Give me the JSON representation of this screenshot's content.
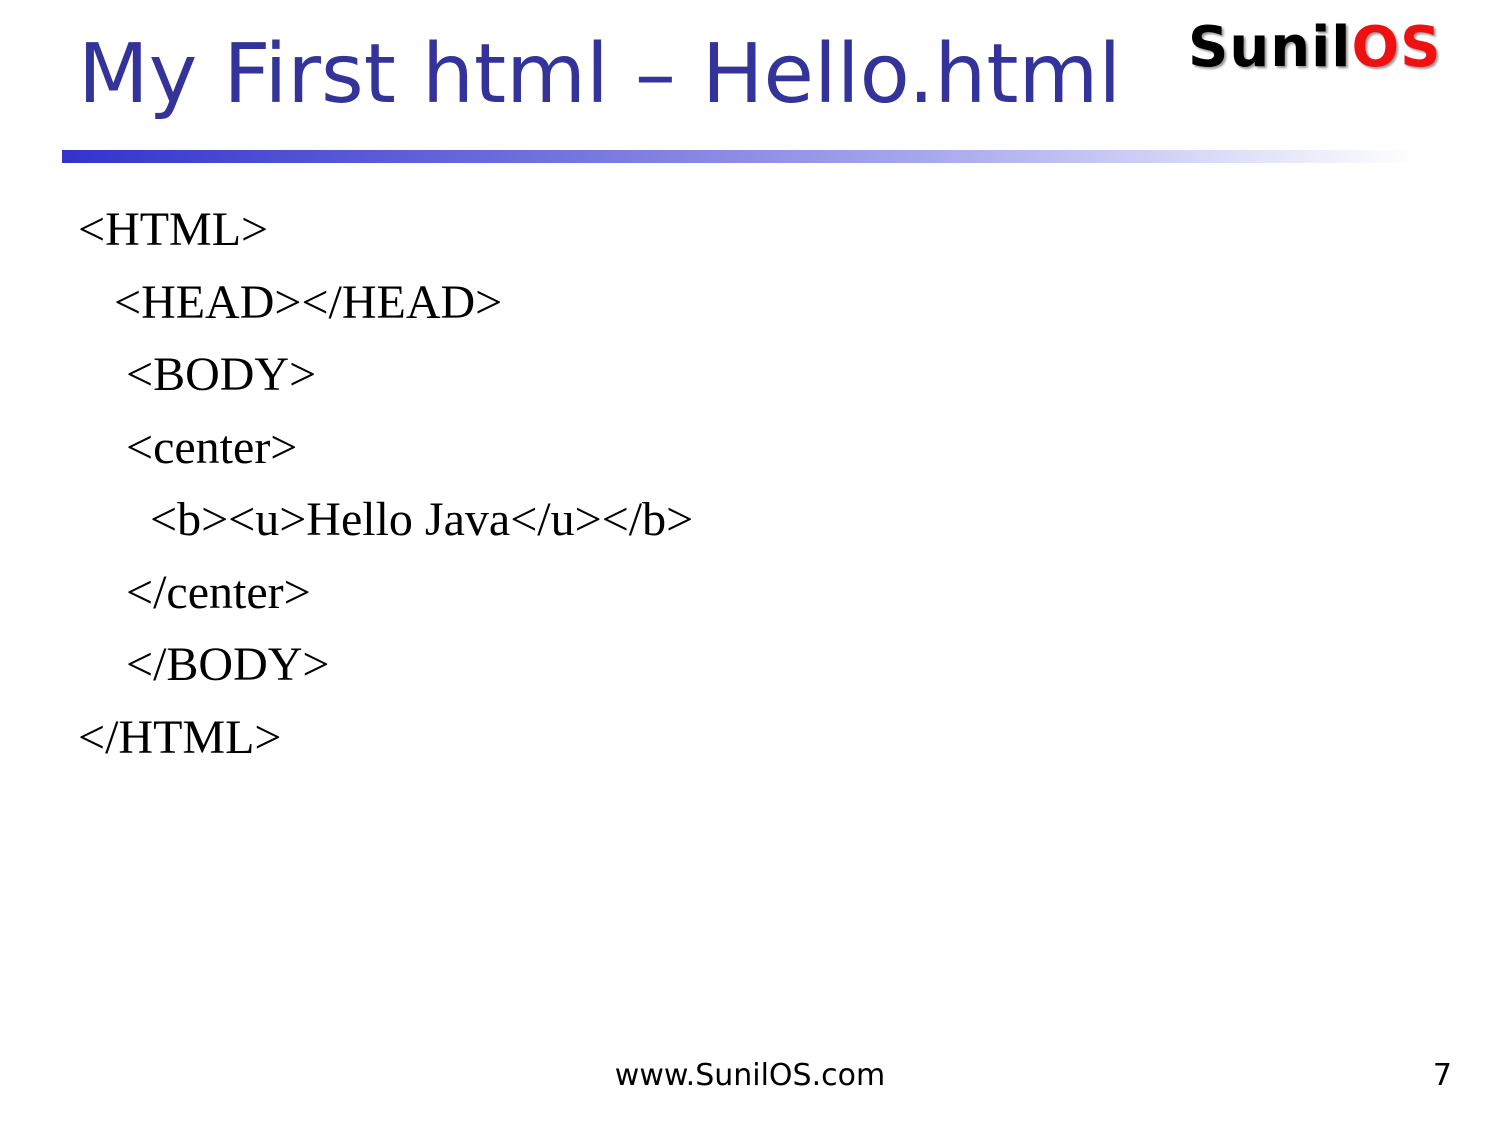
{
  "slide": {
    "title": "My First html – Hello.html",
    "logo": {
      "part1": "Sunil",
      "part2": "OS",
      "color_part1": "#000000",
      "color_part2": "#ee1111"
    },
    "code_lines": [
      "<HTML>",
      "   <HEAD></HEAD>",
      "    <BODY>",
      "    <center>",
      "      <b><u>Hello Java</u></b>",
      "    </center>",
      "    </BODY>",
      "</HTML>"
    ],
    "footer_url": "www.SunilOS.com",
    "page_number": "7",
    "title_color": "#333399"
  }
}
